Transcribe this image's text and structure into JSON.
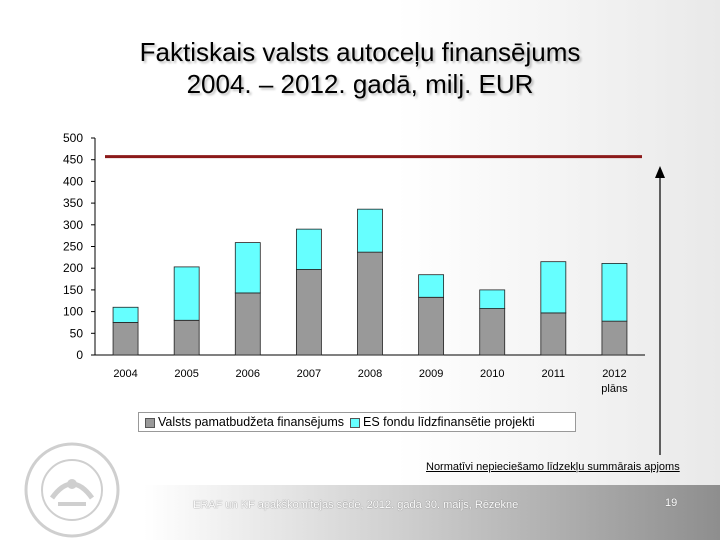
{
  "chart_data": {
    "type": "bar",
    "stacked": true,
    "title": "Faktiskais valsts autoceļu finansējums",
    "subtitle": "2004. – 2012. gadā, milj. EUR",
    "categories": [
      "2004",
      "2005",
      "2006",
      "2007",
      "2008",
      "2009",
      "2010",
      "2011",
      "2012"
    ],
    "category_sublabels": [
      "",
      "",
      "",
      "",
      "",
      "",
      "",
      "",
      "plāns"
    ],
    "series": [
      {
        "name": "Valsts pamatbudžeta finansējums",
        "color": "#999999",
        "values": [
          75,
          80,
          143,
          197,
          237,
          133,
          107,
          97,
          78
        ]
      },
      {
        "name": "ES fondu līdzfinansētie projekti",
        "color": "#66ffff",
        "values": [
          35,
          123,
          116,
          93,
          99,
          52,
          43,
          118,
          133
        ]
      }
    ],
    "ylim": [
      0,
      500
    ],
    "yticks": [
      0,
      50,
      100,
      150,
      200,
      250,
      300,
      350,
      400,
      450,
      500
    ],
    "reference_line": {
      "value": 457,
      "color": "#8b1a1a"
    },
    "legend_position": "bottom",
    "grid": false
  },
  "annotation": "Normatīvi nepieciešamo līdzekļu summārais apjoms",
  "footer": {
    "text": "ERAF un KF apakškomitejas sēde, 2012. gada 30. maijs, Rēzekne",
    "page": "19"
  },
  "colors": {
    "accent_line": "#8b1a1a",
    "base_bar": "#999999",
    "eu_bar": "#66ffff"
  },
  "logo_icon": "latvian-state-roads-seal-icon"
}
